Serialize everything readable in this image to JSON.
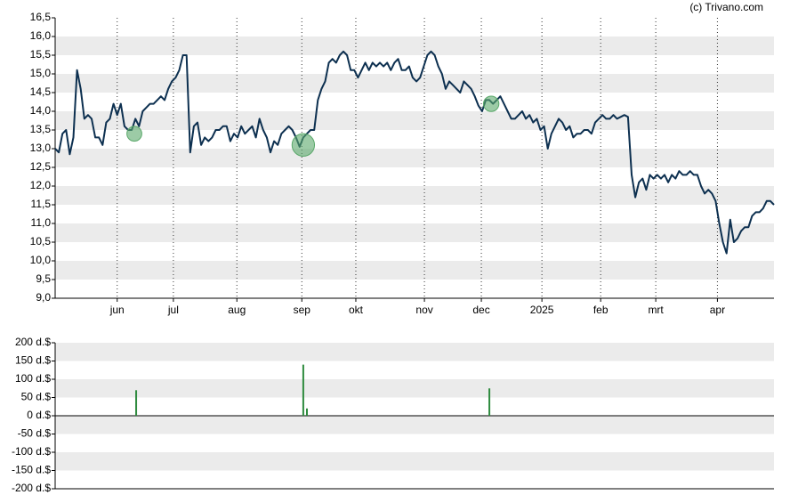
{
  "source": "(c) Trivano.com",
  "chart_data": [
    {
      "type": "line",
      "xlim": [
        0,
        197
      ],
      "xticks": [
        {
          "value": 17,
          "label": "jun"
        },
        {
          "value": 32.4,
          "label": "jul"
        },
        {
          "value": 49.8,
          "label": "aug"
        },
        {
          "value": 67.6,
          "label": "sep"
        },
        {
          "value": 82.4,
          "label": "okt"
        },
        {
          "value": 101.2,
          "label": "nov"
        },
        {
          "value": 116.8,
          "label": "dec"
        },
        {
          "value": 133.4,
          "label": "2025"
        },
        {
          "value": 149.5,
          "label": "feb"
        },
        {
          "value": 164.6,
          "label": "mrt"
        },
        {
          "value": 181.5,
          "label": "apr"
        }
      ],
      "ylim": [
        9.0,
        16.5
      ],
      "yticks": [
        {
          "value": 9.0,
          "label": "9,0"
        },
        {
          "value": 9.5,
          "label": "9,5"
        },
        {
          "value": 10.0,
          "label": "10,0"
        },
        {
          "value": 10.5,
          "label": "10,5"
        },
        {
          "value": 11.0,
          "label": "11,0"
        },
        {
          "value": 11.5,
          "label": "11,5"
        },
        {
          "value": 12.0,
          "label": "12,0"
        },
        {
          "value": 12.5,
          "label": "12,5"
        },
        {
          "value": 13.0,
          "label": "13,0"
        },
        {
          "value": 13.5,
          "label": "13,5"
        },
        {
          "value": 14.0,
          "label": "14,0"
        },
        {
          "value": 14.5,
          "label": "14,5"
        },
        {
          "value": 15.0,
          "label": "15,0"
        },
        {
          "value": 15.5,
          "label": "15,5"
        },
        {
          "value": 16.0,
          "label": "16,0"
        },
        {
          "value": 16.5,
          "label": "16,5"
        }
      ],
      "grid": true,
      "series": [
        {
          "color": "#0d3050",
          "values": [
            13.0,
            12.9,
            13.4,
            13.5,
            12.85,
            13.3,
            15.1,
            14.6,
            13.8,
            13.9,
            13.8,
            13.3,
            13.3,
            13.1,
            13.7,
            13.8,
            14.2,
            13.9,
            14.2,
            13.6,
            13.5,
            13.5,
            13.8,
            13.6,
            14.0,
            14.1,
            14.2,
            14.2,
            14.3,
            14.4,
            14.3,
            14.6,
            14.8,
            14.9,
            15.1,
            15.5,
            15.5,
            12.9,
            13.6,
            13.7,
            13.1,
            13.3,
            13.2,
            13.3,
            13.5,
            13.5,
            13.6,
            13.6,
            13.2,
            13.4,
            13.3,
            13.6,
            13.4,
            13.5,
            13.6,
            13.3,
            13.8,
            13.5,
            13.3,
            12.9,
            13.2,
            13.1,
            13.4,
            13.5,
            13.6,
            13.5,
            13.3,
            13.05,
            13.3,
            13.4,
            13.5,
            13.5,
            14.3,
            14.6,
            14.8,
            15.3,
            15.4,
            15.3,
            15.5,
            15.6,
            15.5,
            15.1,
            15.1,
            14.9,
            15.1,
            15.3,
            15.1,
            15.3,
            15.2,
            15.3,
            15.2,
            15.3,
            15.1,
            15.3,
            15.4,
            15.1,
            15.1,
            15.2,
            14.9,
            14.8,
            14.9,
            15.2,
            15.5,
            15.6,
            15.5,
            15.2,
            15.0,
            14.6,
            14.8,
            14.7,
            14.6,
            14.5,
            14.8,
            14.7,
            14.6,
            14.4,
            14.15,
            14.0,
            14.3,
            14.3,
            14.2,
            14.3,
            14.4,
            14.2,
            14.0,
            13.8,
            13.8,
            13.9,
            14.0,
            13.8,
            13.9,
            13.7,
            13.8,
            13.5,
            13.6,
            13.0,
            13.4,
            13.6,
            13.8,
            13.7,
            13.5,
            13.6,
            13.3,
            13.4,
            13.4,
            13.5,
            13.5,
            13.4,
            13.7,
            13.8,
            13.9,
            13.8,
            13.8,
            13.9,
            13.8,
            13.85,
            13.9,
            13.85,
            12.3,
            11.7,
            12.1,
            12.2,
            11.9,
            12.3,
            12.2,
            12.3,
            12.2,
            12.3,
            12.1,
            12.3,
            12.2,
            12.4,
            12.3,
            12.3,
            12.4,
            12.3,
            12.3,
            12.0,
            11.8,
            11.9,
            11.8,
            11.6,
            11.0,
            10.5,
            10.2,
            11.1,
            10.5,
            10.6,
            10.8,
            10.9,
            10.9,
            11.2,
            11.3,
            11.3,
            11.4,
            11.6,
            11.6,
            11.5
          ]
        }
      ],
      "markers": {
        "color": "#5aa86a",
        "x": [
          21.7,
          68,
          119.5
        ],
        "values": [
          13.4,
          13.1,
          14.2
        ],
        "sizes": [
          70,
          160,
          75
        ]
      }
    },
    {
      "type": "bar",
      "xlim": [
        0,
        197
      ],
      "ylim": [
        -200,
        200
      ],
      "yticks": [
        {
          "value": -200,
          "label": "-200 d.$"
        },
        {
          "value": -150,
          "label": "-150 d.$"
        },
        {
          "value": -100,
          "label": "-100 d.$"
        },
        {
          "value": -50,
          "label": "-50 d.$"
        },
        {
          "value": 0,
          "label": "0 d.$"
        },
        {
          "value": 50,
          "label": "50 d.$"
        },
        {
          "value": 100,
          "label": "100 d.$"
        },
        {
          "value": 150,
          "label": "150 d.$"
        },
        {
          "value": 200,
          "label": "200 d.$"
        }
      ],
      "grid": true,
      "color": "#2e8b3e",
      "x": [
        22.2,
        68,
        69,
        119
      ],
      "values": [
        70,
        140,
        20,
        75
      ]
    }
  ]
}
